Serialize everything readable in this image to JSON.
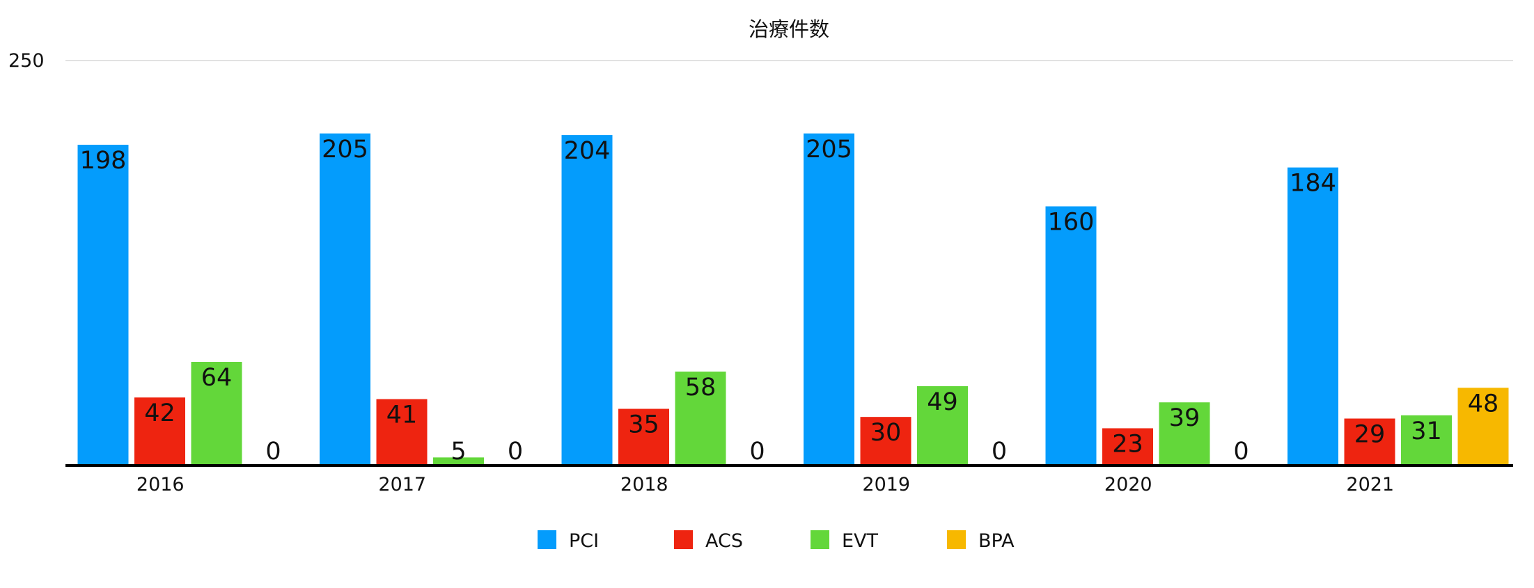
{
  "chart_data": {
    "type": "bar",
    "title": "治療件数",
    "categories": [
      "2016",
      "2017",
      "2018",
      "2019",
      "2020",
      "2021"
    ],
    "series": [
      {
        "name": "PCI",
        "color": "#049CFC",
        "values": [
          198,
          205,
          204,
          205,
          160,
          184
        ]
      },
      {
        "name": "ACS",
        "color": "#EE2410",
        "values": [
          42,
          41,
          35,
          30,
          23,
          29
        ]
      },
      {
        "name": "EVT",
        "color": "#63D73A",
        "values": [
          64,
          5,
          58,
          49,
          39,
          31
        ]
      },
      {
        "name": "BPA",
        "color": "#F7B800",
        "values": [
          0,
          0,
          0,
          0,
          0,
          48
        ]
      }
    ],
    "ylim": [
      0,
      250
    ],
    "yticks": [
      "250"
    ],
    "xlabel": "",
    "ylabel": "",
    "grid": true,
    "legend": "bottom"
  }
}
